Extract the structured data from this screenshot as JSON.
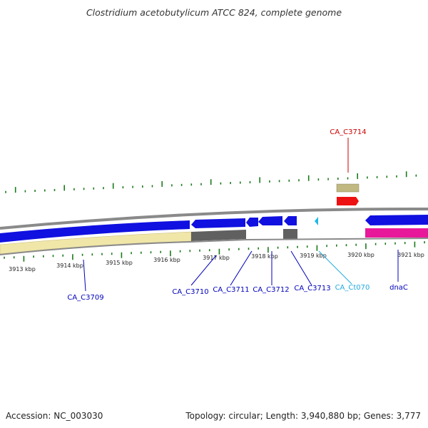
{
  "title": "Clostridium acetobutylicum ATCC 824, complete genome",
  "footer": {
    "accession": "Accession: NC_003030",
    "summary": "Topology: circular; Length: 3,940,880 bp; Genes: 3,777"
  },
  "colors": {
    "backbone": "#808080",
    "tick": "#1a7a1a",
    "gene_blue": "#1010e0",
    "gene_gray": "#606060",
    "gene_yellow": "#f0e6a8",
    "gene_magenta": "#e8189a",
    "gene_red": "#ee1111",
    "gene_khaki": "#c0b880",
    "gene_cyan": "#20b8e8",
    "label_blue": "#0000bb",
    "label_red": "#cc0000",
    "label_cyan": "#22aadd"
  },
  "scale_labels": [
    "3913 kbp",
    "3914 kbp",
    "3915 kbp",
    "3916 kbp",
    "3917 kbp",
    "3918 kbp",
    "3919 kbp",
    "3920 kbp",
    "3921 kbp"
  ],
  "gene_labels": [
    {
      "name": "CA_C3709",
      "color": "label_blue"
    },
    {
      "name": "CA_C3710",
      "color": "label_blue"
    },
    {
      "name": "CA_C3711",
      "color": "label_blue"
    },
    {
      "name": "CA_C3712",
      "color": "label_blue"
    },
    {
      "name": "CA_C3713",
      "color": "label_blue"
    },
    {
      "name": "CA_Ct070",
      "color": "label_cyan"
    },
    {
      "name": "dnaC",
      "color": "label_blue"
    },
    {
      "name": "CA_C3714",
      "color": "label_red"
    }
  ]
}
